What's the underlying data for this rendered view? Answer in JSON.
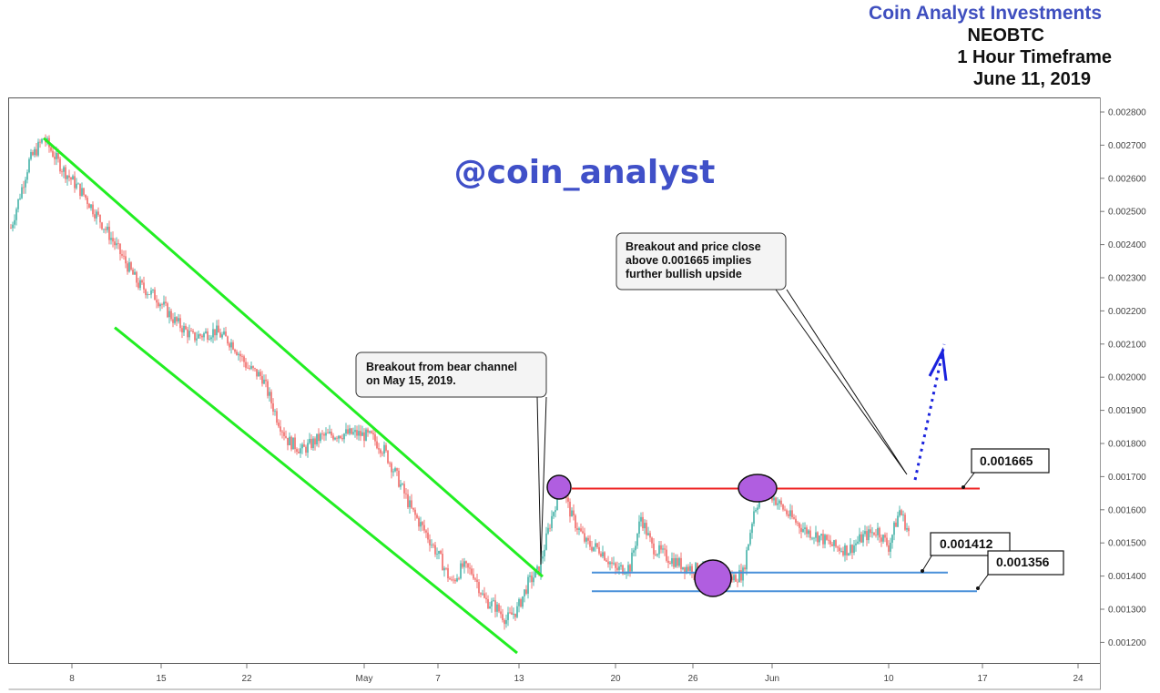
{
  "header": {
    "brand": "Coin Analyst Investments",
    "symbol": "NEOBTC",
    "timeframe": "1 Hour Timeframe",
    "date": "June 11, 2019"
  },
  "watermark": "@coin_analyst",
  "colors": {
    "channel": "#22ee22",
    "resistance": "#ee2222",
    "support": "#4a90d9",
    "projection": "#1a22dd",
    "highlight": "#b05ee0",
    "up_candle": "#26a69a",
    "down_candle": "#ef5350"
  },
  "callouts": {
    "breakout_channel": [
      "Breakout from bear channel",
      "on May 15, 2019."
    ],
    "breakout_close": [
      "Breakout and price close",
      "above 0.001665 implies",
      "further bullish upside"
    ]
  },
  "levels": {
    "resistance": "0.001665",
    "support_high": "0.001412",
    "support_low": "0.001356"
  },
  "chart_data": {
    "type": "candlestick",
    "x_ticks": [
      "8",
      "15",
      "22",
      "May",
      "7",
      "13",
      "20",
      "26",
      "Jun",
      "10",
      "17",
      "24"
    ],
    "y_ticks": [
      "0.002800",
      "0.002700",
      "0.002600",
      "0.002500",
      "0.002400",
      "0.002300",
      "0.002200",
      "0.002100",
      "0.002000",
      "0.001900",
      "0.001800",
      "0.001700",
      "0.001600",
      "0.001500",
      "0.001400",
      "0.001300",
      "0.001200"
    ],
    "ylim": [
      0.00114,
      0.00284
    ],
    "price_path": [
      [
        0,
        0.00245
      ],
      [
        10,
        0.00265
      ],
      [
        18,
        0.00272
      ],
      [
        28,
        0.00263
      ],
      [
        40,
        0.00255
      ],
      [
        55,
        0.00242
      ],
      [
        70,
        0.00228
      ],
      [
        80,
        0.00224
      ],
      [
        90,
        0.00217
      ],
      [
        100,
        0.00212
      ],
      [
        112,
        0.00214
      ],
      [
        122,
        0.0021
      ],
      [
        130,
        0.00203
      ],
      [
        138,
        0.002
      ],
      [
        146,
        0.00188
      ],
      [
        152,
        0.00181
      ],
      [
        160,
        0.00178
      ],
      [
        170,
        0.00182
      ],
      [
        180,
        0.00183
      ],
      [
        190,
        0.00183
      ],
      [
        198,
        0.00182
      ],
      [
        205,
        0.00178
      ],
      [
        212,
        0.0017
      ],
      [
        220,
        0.0016
      ],
      [
        228,
        0.00153
      ],
      [
        236,
        0.00145
      ],
      [
        242,
        0.00138
      ],
      [
        248,
        0.00143
      ],
      [
        254,
        0.00141
      ],
      [
        260,
        0.00133
      ],
      [
        266,
        0.00131
      ],
      [
        272,
        0.00127
      ],
      [
        278,
        0.0013
      ],
      [
        284,
        0.00138
      ],
      [
        290,
        0.00142
      ],
      [
        296,
        0.00156
      ],
      [
        302,
        0.00168
      ],
      [
        308,
        0.00158
      ],
      [
        316,
        0.0015
      ],
      [
        324,
        0.00148
      ],
      [
        332,
        0.00142
      ],
      [
        340,
        0.00143
      ],
      [
        346,
        0.00158
      ],
      [
        352,
        0.00149
      ],
      [
        360,
        0.00146
      ],
      [
        370,
        0.00143
      ],
      [
        378,
        0.00142
      ],
      [
        386,
        0.00139
      ],
      [
        394,
        0.00139
      ],
      [
        402,
        0.00141
      ],
      [
        408,
        0.0016
      ],
      [
        414,
        0.00167
      ],
      [
        420,
        0.00163
      ],
      [
        428,
        0.00158
      ],
      [
        436,
        0.00154
      ],
      [
        444,
        0.00152
      ],
      [
        452,
        0.00149
      ],
      [
        460,
        0.00148
      ],
      [
        468,
        0.00152
      ],
      [
        476,
        0.00154
      ],
      [
        482,
        0.00149
      ],
      [
        488,
        0.0016
      ],
      [
        494,
        0.00152
      ]
    ],
    "channel_upper": [
      [
        18,
        0.00272
      ],
      [
        292,
        0.0014
      ]
    ],
    "channel_lower": [
      [
        57,
        0.00215
      ],
      [
        278,
        0.00117
      ]
    ],
    "resistance_level": 0.001665,
    "support_high_level": 0.001412,
    "support_low_level": 0.001356
  }
}
